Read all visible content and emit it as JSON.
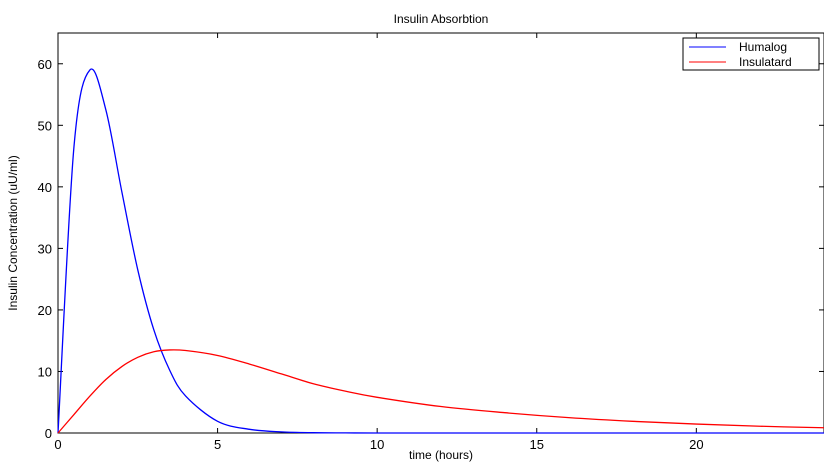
{
  "chart_data": {
    "type": "line",
    "title": "Insulin Absorbtion",
    "xlabel": "time (hours)",
    "ylabel": "Insulin Concentration (uU/ml)",
    "xlim": [
      0,
      24
    ],
    "ylim": [
      0,
      65
    ],
    "xticks": [
      0,
      5,
      10,
      15,
      20
    ],
    "yticks": [
      0,
      10,
      20,
      30,
      40,
      50,
      60
    ],
    "grid": false,
    "legend_position": "top-right",
    "x": [
      0,
      0.5,
      1,
      1.5,
      2,
      2.5,
      3,
      3.5,
      4,
      5,
      6,
      7,
      8,
      9,
      10,
      12,
      14,
      16,
      18,
      20,
      22,
      24
    ],
    "series": [
      {
        "name": "Humalog",
        "color": "#0000ff",
        "values": [
          0,
          46.5,
          59.0,
          52.5,
          39.2,
          26.5,
          16.8,
          10.2,
          6.0,
          1.9,
          0.6,
          0.18,
          0.05,
          0.02,
          0,
          0,
          0,
          0,
          0,
          0,
          0,
          0
        ]
      },
      {
        "name": "Insulatard",
        "color": "#ff0000",
        "values": [
          0,
          3.0,
          6.0,
          8.7,
          10.8,
          12.3,
          13.2,
          13.5,
          13.4,
          12.6,
          11.2,
          9.6,
          8.0,
          6.8,
          5.8,
          4.3,
          3.3,
          2.5,
          1.9,
          1.45,
          1.1,
          0.85
        ]
      }
    ]
  }
}
